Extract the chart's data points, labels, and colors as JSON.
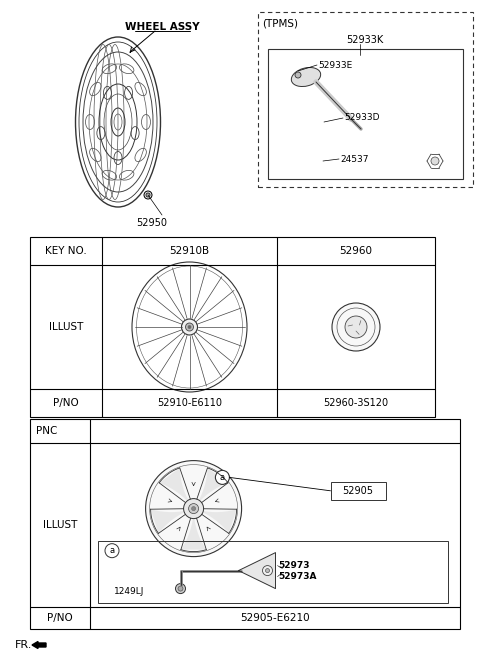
{
  "bg_color": "#ffffff",
  "sections": {
    "top": {
      "wheel_label": "WHEEL ASSY",
      "wheel_part": "52950",
      "tpms_label": "(TPMS)",
      "tpms_k": "52933K",
      "tpms_e": "52933E",
      "tpms_d": "52933D",
      "tpms_24537": "24537"
    },
    "key_table": {
      "col0": "KEY NO.",
      "col1": "52910B",
      "col2": "52960",
      "row_illust": "ILLUST",
      "row_pno": "P/NO",
      "pno1": "52910-E6110",
      "pno2": "52960-3S120"
    },
    "pnc_table": {
      "header": "PNC",
      "illust": "ILLUST",
      "pno_label": "P/NO",
      "pno_val": "52905-E6210",
      "part_label": "52905",
      "sub_a_label": "a",
      "sub_1249": "1249LJ",
      "sub_52973": "52973",
      "sub_52973a": "52973A"
    }
  },
  "fr_label": "FR."
}
